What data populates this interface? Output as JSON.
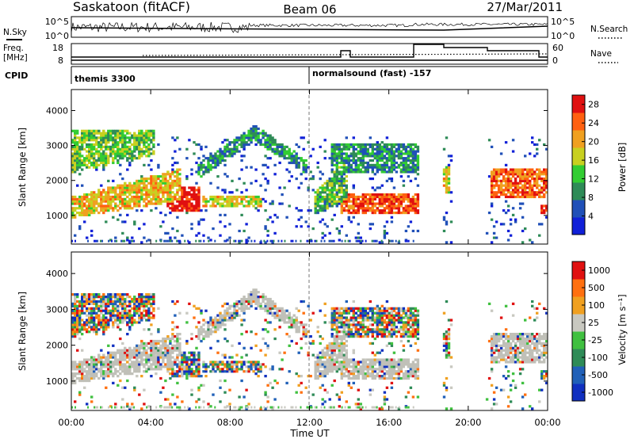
{
  "header": {
    "title": "Saskatoon (fitACF)",
    "beam": "Beam 06",
    "date": "27/Mar/2011"
  },
  "noise_panel": {
    "left_label": "N.Sky",
    "right_label": "N.Search",
    "left_ticks": [
      "10^5",
      "10^0"
    ],
    "right_ticks": [
      "10^5",
      "10^0"
    ]
  },
  "freq_panel": {
    "left_label_line1": "Freq.",
    "left_label_line2": "[MHz]",
    "right_label": "Nave",
    "left_ticks": [
      "18",
      "8"
    ],
    "right_ticks": [
      "60",
      "0"
    ]
  },
  "cpid_panel": {
    "label": "CPID",
    "programs": [
      "themis 3300",
      "normalsound (fast) -157"
    ]
  },
  "chart_data": [
    {
      "type": "heatmap",
      "title": "",
      "xlabel": "Time UT",
      "ylabel": "Slant Range [km]",
      "x_ticks": [
        "00:00",
        "04:00",
        "08:00",
        "12:00",
        "16:00",
        "20:00",
        "00:00"
      ],
      "xlim_hours": [
        0,
        24
      ],
      "y_ticks": [
        1000,
        2000,
        3000,
        4000
      ],
      "ylim": [
        180,
        4600
      ],
      "colorbar": {
        "label": "Power [dB]",
        "ticks": [
          4,
          8,
          12,
          16,
          20,
          24,
          28
        ],
        "range": [
          0,
          30
        ],
        "colors": [
          "#1020d8",
          "#2050b8",
          "#2e8b57",
          "#32cd32",
          "#c8d020",
          "#f0a020",
          "#ff6010",
          "#e01010"
        ]
      },
      "echo_regions": [
        {
          "name": "morning auroral band",
          "t": [
            0.0,
            5.5
          ],
          "r": [
            900,
            3500
          ],
          "level": 0.7
        },
        {
          "name": "strong patch",
          "t": [
            4.8,
            6.4
          ],
          "r": [
            1050,
            1800
          ],
          "level": 0.95
        },
        {
          "name": "arc",
          "t": [
            6.5,
            11.8
          ],
          "r": [
            2000,
            3500
          ],
          "level": 0.35
        },
        {
          "name": "afternoon band",
          "t": [
            13.5,
            17.4
          ],
          "r": [
            1000,
            1600
          ],
          "level": 0.85
        },
        {
          "name": "evening band",
          "t": [
            21.0,
            24.0
          ],
          "r": [
            1500,
            2300
          ],
          "level": 0.8
        }
      ]
    },
    {
      "type": "heatmap",
      "title": "",
      "xlabel": "Time UT",
      "ylabel": "Slant Range [km]",
      "x_ticks": [
        "00:00",
        "04:00",
        "08:00",
        "12:00",
        "16:00",
        "20:00",
        "00:00"
      ],
      "xlim_hours": [
        0,
        24
      ],
      "y_ticks": [
        1000,
        2000,
        3000,
        4000
      ],
      "ylim": [
        180,
        4600
      ],
      "colorbar": {
        "label": "Velocity [m s⁻¹]",
        "ticks": [
          "1000",
          "500",
          "100",
          "25",
          "-25",
          "-100",
          "-500",
          "-1000"
        ],
        "colors": [
          "#1030c0",
          "#2060b8",
          "#2e8b57",
          "#40c040",
          "#c8c8c0",
          "#f0a020",
          "#ff7010",
          "#e01010"
        ]
      },
      "ground_scatter_color": "#c0c0b8"
    }
  ]
}
